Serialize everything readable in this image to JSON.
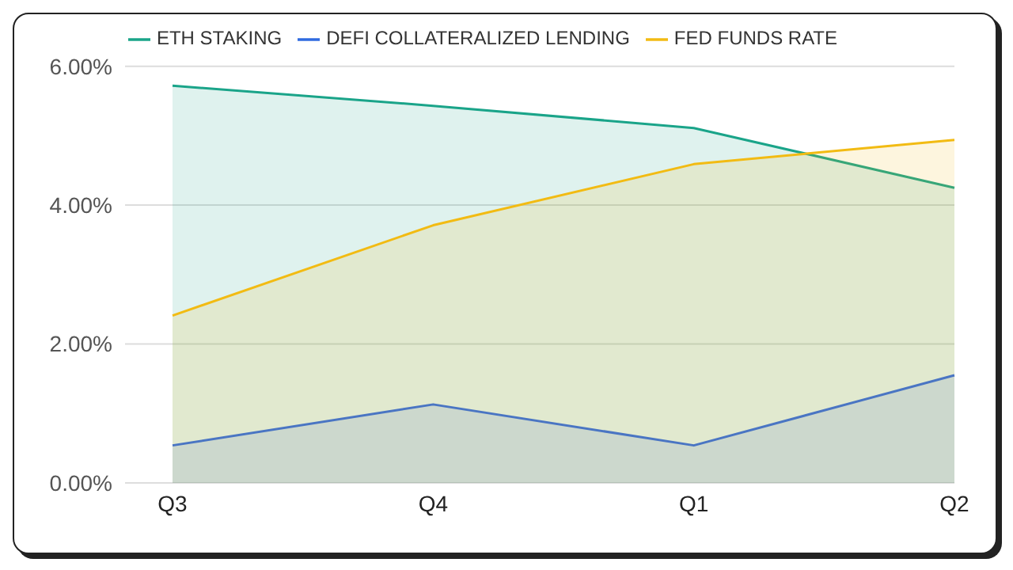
{
  "chart_data": {
    "type": "area",
    "categories": [
      "Q3",
      "Q4",
      "Q1",
      "Q2"
    ],
    "series": [
      {
        "name": "ETH STAKING",
        "color": "#1aa489",
        "values": [
          5.72,
          5.43,
          5.11,
          4.25
        ]
      },
      {
        "name": "DEFI COLLATERALIZED LENDING",
        "color": "#2f6be0",
        "values": [
          0.54,
          1.13,
          0.54,
          1.55
        ]
      },
      {
        "name": "FED FUNDS RATE",
        "color": "#f2bb13",
        "values": [
          2.41,
          3.71,
          4.59,
          4.94
        ]
      }
    ],
    "ylim": [
      0,
      6
    ],
    "yticks": [
      {
        "value": 0,
        "label": "0.00%"
      },
      {
        "value": 2,
        "label": "2.00%"
      },
      {
        "value": 4,
        "label": "4.00%"
      },
      {
        "value": 6,
        "label": "6.00%"
      }
    ],
    "grid": "y",
    "legend": "top",
    "marker": "none",
    "line_style": "solid"
  }
}
